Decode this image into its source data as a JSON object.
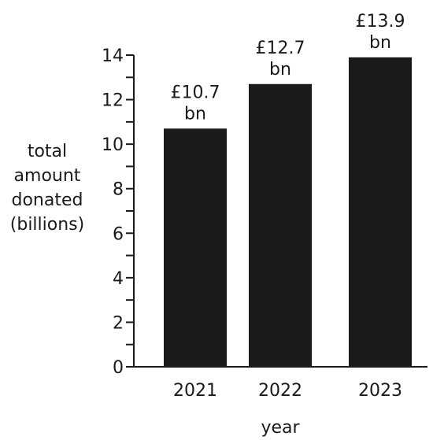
{
  "chart_data": {
    "type": "bar",
    "categories": [
      "2021",
      "2022",
      "2023"
    ],
    "values": [
      10.7,
      12.7,
      13.9
    ],
    "data_labels": [
      [
        "£10.7",
        "bn"
      ],
      [
        "£12.7",
        "bn"
      ],
      [
        "£13.9",
        "bn"
      ]
    ],
    "xlabel": "year",
    "ylabel_lines": [
      "total",
      "amount",
      "donated",
      "(billions)"
    ],
    "ylim": [
      0,
      14
    ],
    "yticks": [
      0,
      2,
      4,
      6,
      8,
      10,
      12,
      14
    ],
    "ytick_labels": [
      "0",
      "2",
      "4",
      "6",
      "8",
      "10",
      "12",
      "14"
    ],
    "grid": false,
    "colors": {
      "bar": "#1a1a1a",
      "axis": "#1a1a1a",
      "text": "#1a1a1a"
    }
  }
}
